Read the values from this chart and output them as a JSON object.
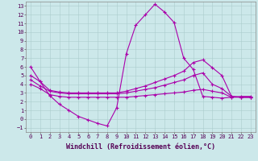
{
  "background_color": "#cce8ea",
  "grid_color": "#aacccc",
  "line_color": "#aa00aa",
  "marker": "+",
  "markersize": 3,
  "linewidth": 0.8,
  "xlabel": "Windchill (Refroidissement éolien,°C)",
  "xlabel_fontsize": 6,
  "xlim": [
    -0.5,
    23.5
  ],
  "ylim": [
    -1.5,
    13.5
  ],
  "xticks": [
    0,
    1,
    2,
    3,
    4,
    5,
    6,
    7,
    8,
    9,
    10,
    11,
    12,
    13,
    14,
    15,
    16,
    17,
    18,
    19,
    20,
    21,
    22,
    23
  ],
  "yticks": [
    -1,
    0,
    1,
    2,
    3,
    4,
    5,
    6,
    7,
    8,
    9,
    10,
    11,
    12,
    13
  ],
  "tick_fontsize": 5,
  "line1_x": [
    0,
    1,
    2,
    3,
    4,
    5,
    6,
    7,
    8,
    9,
    10,
    11,
    12,
    13,
    14,
    15,
    16,
    17,
    18,
    19,
    20,
    21,
    22,
    23
  ],
  "line1_y": [
    6.0,
    4.3,
    2.7,
    1.7,
    1.0,
    0.3,
    -0.1,
    -0.5,
    -0.8,
    1.3,
    7.5,
    10.8,
    12.0,
    13.2,
    12.3,
    11.1,
    7.0,
    5.7,
    2.6,
    2.5,
    2.4,
    2.5,
    2.6,
    2.6
  ],
  "line2_x": [
    0,
    1,
    2,
    3,
    4,
    5,
    6,
    7,
    8,
    9,
    10,
    11,
    12,
    13,
    14,
    15,
    16,
    17,
    18,
    19,
    20,
    21,
    22,
    23
  ],
  "line2_y": [
    5.0,
    4.3,
    3.3,
    3.1,
    3.0,
    3.0,
    3.0,
    3.0,
    3.0,
    3.0,
    3.2,
    3.5,
    3.8,
    4.2,
    4.6,
    5.0,
    5.5,
    6.5,
    6.8,
    5.9,
    5.0,
    2.6,
    2.5,
    2.5
  ],
  "line3_x": [
    0,
    1,
    2,
    3,
    4,
    5,
    6,
    7,
    8,
    9,
    10,
    11,
    12,
    13,
    14,
    15,
    16,
    17,
    18,
    19,
    20,
    21,
    22,
    23
  ],
  "line3_y": [
    4.5,
    3.8,
    3.2,
    3.0,
    2.9,
    2.9,
    2.9,
    2.9,
    2.9,
    2.9,
    3.0,
    3.2,
    3.4,
    3.6,
    3.9,
    4.2,
    4.5,
    5.0,
    5.3,
    4.0,
    3.5,
    2.6,
    2.5,
    2.5
  ],
  "line4_x": [
    0,
    1,
    2,
    3,
    4,
    5,
    6,
    7,
    8,
    9,
    10,
    11,
    12,
    13,
    14,
    15,
    16,
    17,
    18,
    19,
    20,
    21,
    22,
    23
  ],
  "line4_y": [
    4.0,
    3.5,
    2.8,
    2.6,
    2.5,
    2.5,
    2.5,
    2.5,
    2.5,
    2.5,
    2.5,
    2.6,
    2.7,
    2.8,
    2.9,
    3.0,
    3.1,
    3.3,
    3.4,
    3.2,
    3.0,
    2.5,
    2.5,
    2.5
  ]
}
